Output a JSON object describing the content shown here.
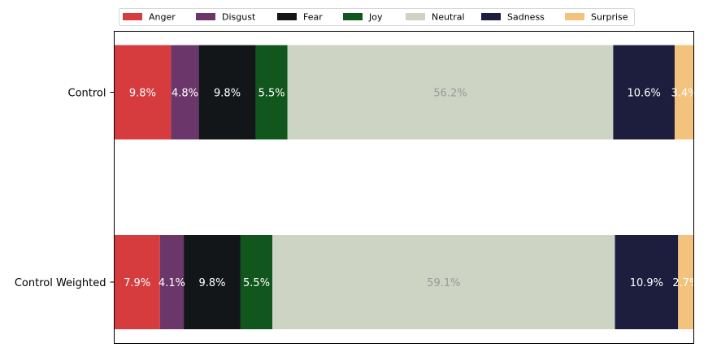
{
  "chart_data": {
    "type": "bar",
    "orientation": "horizontal",
    "stacked": true,
    "categories": [
      "Control",
      "Control Weighted"
    ],
    "series": [
      {
        "name": "Anger",
        "color": "#d63b3e",
        "label_color": "#ffffff",
        "values": [
          9.8,
          7.9
        ]
      },
      {
        "name": "Disgust",
        "color": "#6b3669",
        "label_color": "#ffffff",
        "values": [
          4.8,
          4.1
        ]
      },
      {
        "name": "Fear",
        "color": "#121619",
        "label_color": "#ffffff",
        "values": [
          9.8,
          9.8
        ]
      },
      {
        "name": "Joy",
        "color": "#11561c",
        "label_color": "#ffffff",
        "values": [
          5.5,
          5.5
        ]
      },
      {
        "name": "Neutral",
        "color": "#cdd4c3",
        "label_color": "#9a9a9a",
        "values": [
          56.2,
          59.1
        ]
      },
      {
        "name": "Sadness",
        "color": "#1d1d3e",
        "label_color": "#ffffff",
        "values": [
          10.6,
          10.9
        ]
      },
      {
        "name": "Surprise",
        "color": "#f3c37d",
        "label_color": "#ffffff",
        "values": [
          3.4,
          2.7
        ]
      }
    ],
    "data_labels": [
      [
        "9.8%",
        "4.8%",
        "9.8%",
        "5.5%",
        "56.2%",
        "10.6%",
        "3.4%"
      ],
      [
        "7.9%",
        "4.1%",
        "9.8%",
        "5.5%",
        "59.1%",
        "10.9%",
        "2.7%"
      ]
    ],
    "xlim": [
      0,
      100
    ],
    "legend_position": "top",
    "grid": false,
    "x_axis_visible": false
  }
}
